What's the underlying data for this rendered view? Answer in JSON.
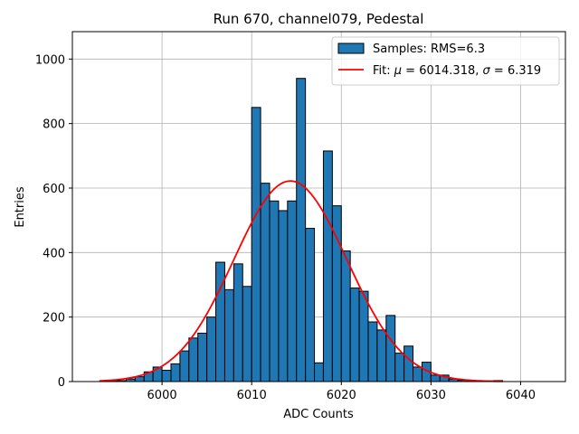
{
  "chart_data": {
    "type": "bar",
    "title": "Run 670, channel079, Pedestal",
    "xlabel": "ADC Counts",
    "ylabel": "Entries",
    "xlim": [
      5990,
      6045
    ],
    "ylim": [
      0,
      1085
    ],
    "xticks": [
      6000,
      6010,
      6020,
      6030,
      6040
    ],
    "yticks": [
      0,
      200,
      400,
      600,
      800,
      1000
    ],
    "grid": true,
    "legend_position": "top-right",
    "histogram": {
      "name": "Samples: RMS=6.3",
      "color": "#1f77b4",
      "edge_color": "#000000",
      "bin_width": 1,
      "bin_starts": [
        5994,
        5995,
        5996,
        5997,
        5998,
        5999,
        6000,
        6001,
        6002,
        6003,
        6004,
        6005,
        6006,
        6007,
        6008,
        6009,
        6010,
        6011,
        6012,
        6013,
        6014,
        6015,
        6016,
        6017,
        6018,
        6019,
        6020,
        6021,
        6022,
        6023,
        6024,
        6025,
        6026,
        6027,
        6028,
        6029,
        6030,
        6031,
        6032,
        6033,
        6034,
        6035,
        6036,
        6037
      ],
      "values": [
        2,
        3,
        8,
        15,
        30,
        45,
        35,
        55,
        95,
        135,
        150,
        200,
        370,
        285,
        365,
        295,
        850,
        615,
        560,
        530,
        560,
        940,
        475,
        58,
        715,
        545,
        405,
        290,
        280,
        185,
        160,
        205,
        88,
        110,
        45,
        60,
        20,
        20,
        8,
        4,
        3,
        2,
        2,
        3
      ]
    },
    "fit": {
      "name_prefix": "Fit: ",
      "mu_symbol": "μ",
      "mu_value": "6014.318",
      "sigma_symbol": "σ",
      "sigma_value": "6.319",
      "mu": 6014.318,
      "sigma": 6.319,
      "amplitude": 622,
      "x_range": [
        5993,
        6038
      ],
      "color": "#ff0000"
    },
    "style": {
      "grid_color": "#b0b0b0"
    }
  }
}
